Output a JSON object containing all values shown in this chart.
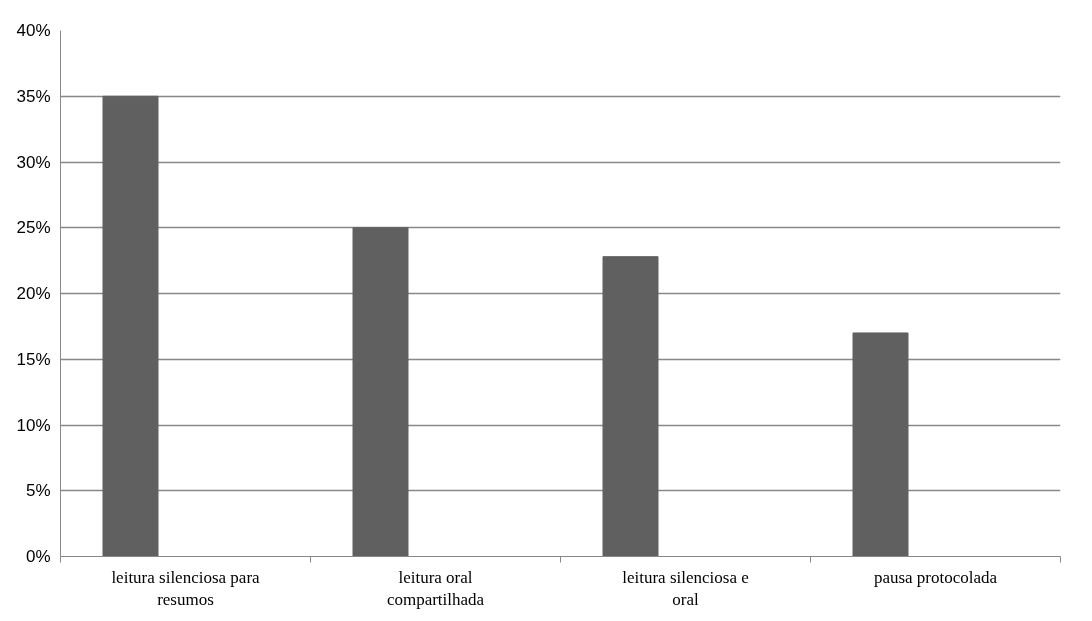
{
  "chart_data": {
    "type": "bar",
    "categories": [
      "leitura silenciosa para resumos",
      "leitura oral compartilhada",
      "leitura silenciosa e oral",
      "pausa protocolada"
    ],
    "values": [
      35,
      25,
      22.8,
      17
    ],
    "color": "#606060",
    "ylim": [
      0,
      40
    ],
    "yticks": [
      {
        "value": 0,
        "label": "0%"
      },
      {
        "value": 5,
        "label": "5%"
      },
      {
        "value": 10,
        "label": "10%"
      },
      {
        "value": 15,
        "label": "15%"
      },
      {
        "value": 20,
        "label": "20%"
      },
      {
        "value": 25,
        "label": "25%"
      },
      {
        "value": 30,
        "label": "30%"
      },
      {
        "value": 35,
        "label": "35%"
      },
      {
        "value": 40,
        "label": "40%"
      }
    ],
    "grid": "y"
  }
}
